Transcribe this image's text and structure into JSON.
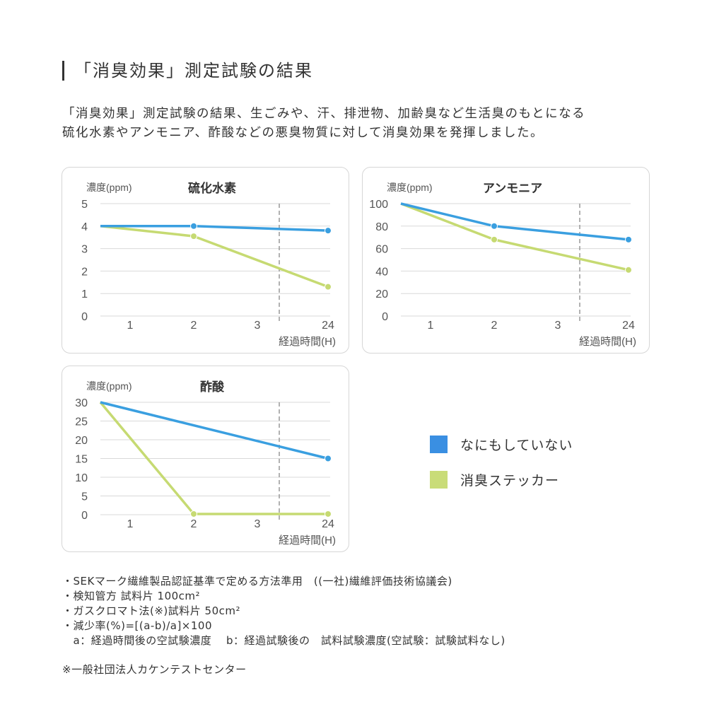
{
  "heading": "「消臭効果」測定試験の結果",
  "intro": [
    "「消臭効果」測定試験の結果、生ごみや、汗、排泄物、加齢臭など生活臭のもとになる",
    "硫化水素やアンモニア、酢酸などの悪臭物質に対して消臭効果を発揮しました。"
  ],
  "colors": {
    "none": "#3a9fe0",
    "sticker": "#c6da72",
    "legend_none": "#3a8fe2",
    "legend_sticker": "#c9dc78",
    "grid": "#d9d9d9",
    "dash": "#999999"
  },
  "legend": [
    {
      "label": "なにもしていない",
      "series": "none"
    },
    {
      "label": "消臭ステッカー",
      "series": "sticker"
    }
  ],
  "chart_data": [
    {
      "type": "line",
      "title": "硫化水素",
      "ylabel": "濃度(ppm)",
      "xlabel": "経過時間(H)",
      "x_ticks": [
        "1",
        "2",
        "3",
        "24"
      ],
      "y_ticks": [
        0,
        1,
        2,
        3,
        4,
        5
      ],
      "ylim": [
        0,
        5
      ],
      "grid": true,
      "axis_break": "between 3 and 24",
      "series": [
        {
          "key": "none",
          "x": [
            0,
            2,
            24
          ],
          "values": [
            4.0,
            4.0,
            3.8
          ]
        },
        {
          "key": "sticker",
          "x": [
            0,
            2,
            24
          ],
          "values": [
            4.0,
            3.55,
            1.3
          ]
        }
      ]
    },
    {
      "type": "line",
      "title": "アンモニア",
      "ylabel": "濃度(ppm)",
      "xlabel": "経過時間(H)",
      "x_ticks": [
        "1",
        "2",
        "3",
        "24"
      ],
      "y_ticks": [
        0,
        20,
        40,
        60,
        80,
        100
      ],
      "ylim": [
        0,
        100
      ],
      "grid": true,
      "axis_break": "between 3 and 24",
      "series": [
        {
          "key": "none",
          "x": [
            0,
            2,
            24
          ],
          "values": [
            100,
            80,
            68
          ]
        },
        {
          "key": "sticker",
          "x": [
            0,
            2,
            24
          ],
          "values": [
            100,
            68,
            41
          ]
        }
      ]
    },
    {
      "type": "line",
      "title": "酢酸",
      "ylabel": "濃度(ppm)",
      "xlabel": "経過時間(H)",
      "x_ticks": [
        "1",
        "2",
        "3",
        "24"
      ],
      "y_ticks": [
        0,
        5,
        10,
        15,
        20,
        25,
        30
      ],
      "ylim": [
        0,
        30
      ],
      "grid": true,
      "axis_break": "between 3 and 24",
      "series": [
        {
          "key": "none",
          "x": [
            0,
            24
          ],
          "values": [
            30,
            15
          ]
        },
        {
          "key": "sticker",
          "x": [
            0,
            2,
            24
          ],
          "values": [
            30,
            0.2,
            0.2
          ]
        }
      ]
    }
  ],
  "notes": [
    "・SEKマーク繊維製品認証基準で定める方法準用　((一社)繊維評価技術協議会)",
    "・検知管方 試料片 100cm²",
    "・ガスクロマト法(※)試料片 50cm²",
    "・減少率(%)=[(a-b)/a]×100",
    "　a：経過時間後の空試験濃度　 b：経過試験後の　試料試験濃度(空試験：試験試料なし)"
  ],
  "source": "※一般社団法人カケンテストセンター"
}
